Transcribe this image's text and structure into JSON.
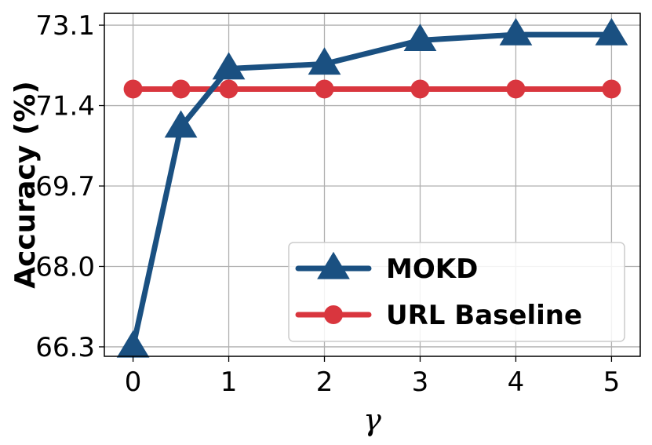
{
  "chart_data": {
    "type": "line",
    "xlabel": "γ",
    "ylabel": "Accuracy (%)",
    "x": [
      0,
      0.5,
      1,
      2,
      3,
      4,
      5
    ],
    "x_ticks": [
      "0",
      "1",
      "2",
      "3",
      "4",
      "5"
    ],
    "y_ticks": [
      "66.3",
      "68.0",
      "69.7",
      "71.4",
      "73.1"
    ],
    "xlim": [
      -0.3,
      5.3
    ],
    "ylim": [
      66.1,
      73.35
    ],
    "grid": true,
    "legend_position": "bottom-right",
    "series": [
      {
        "name": "MOKD",
        "marker": "triangle",
        "color": "#1a5081",
        "values": [
          66.3,
          70.95,
          72.18,
          72.28,
          72.78,
          72.9,
          72.9
        ]
      },
      {
        "name": "URL Baseline",
        "marker": "circle",
        "color": "#d9363e",
        "values": [
          71.75,
          71.75,
          71.75,
          71.75,
          71.75,
          71.75,
          71.75
        ]
      }
    ]
  }
}
